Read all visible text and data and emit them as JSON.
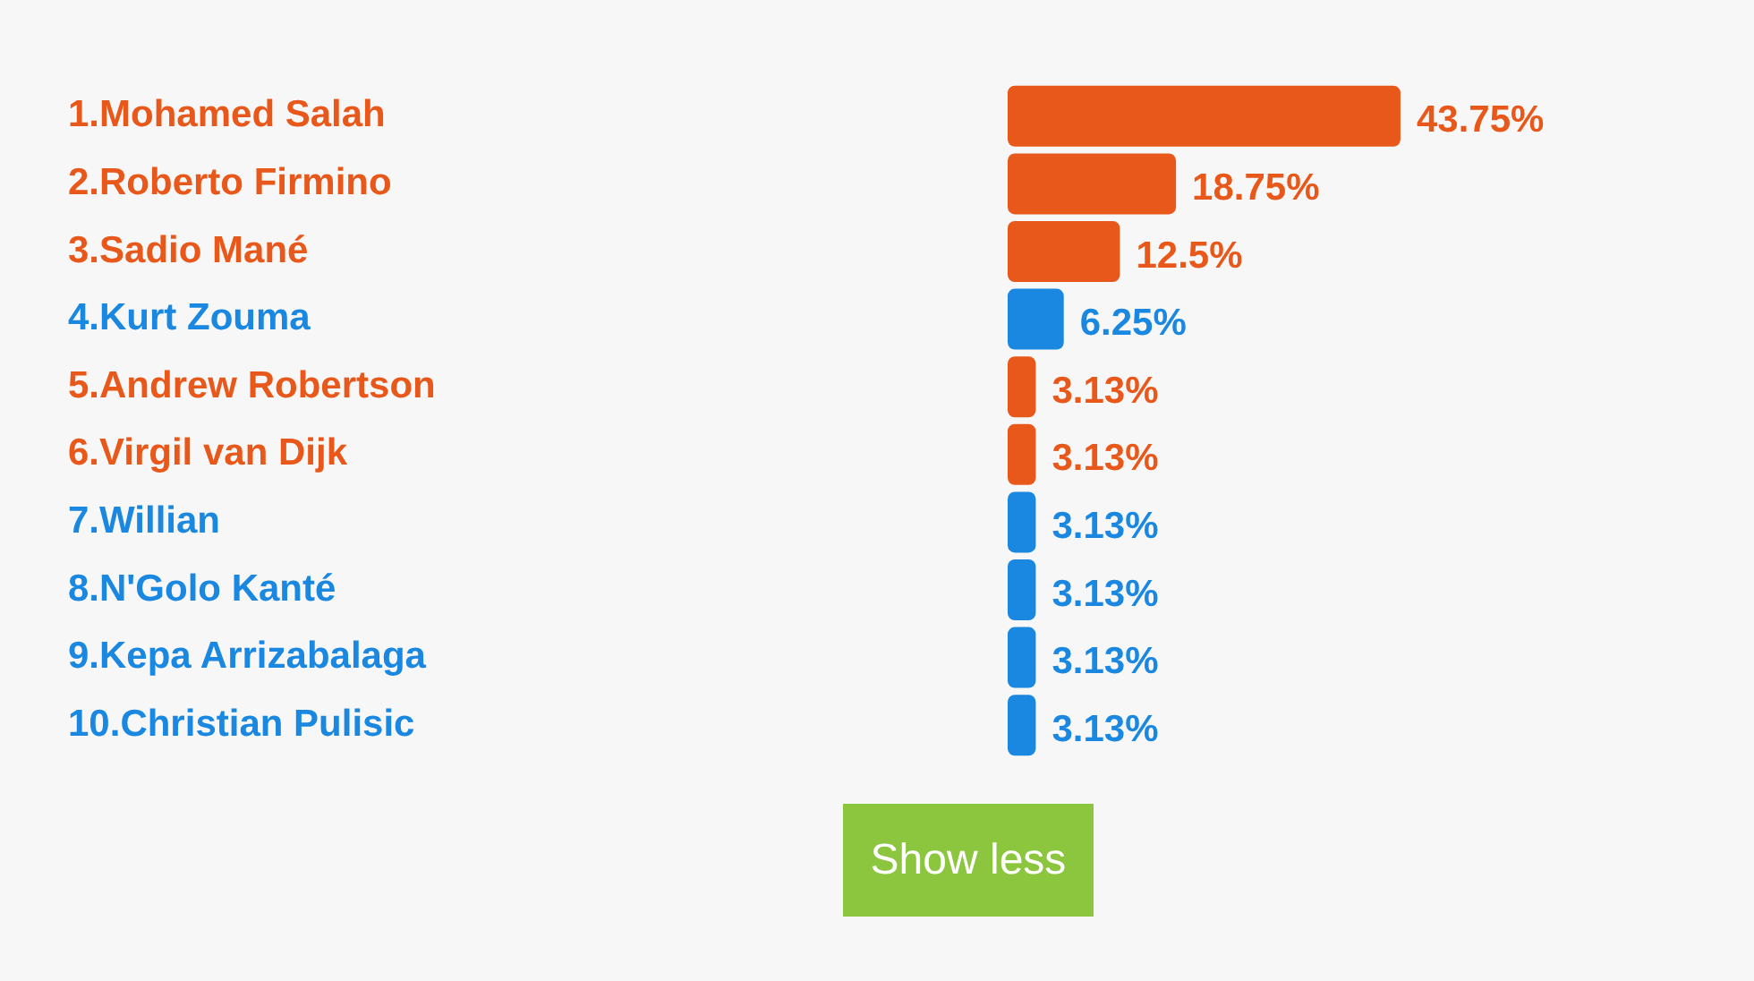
{
  "chart_data": {
    "type": "bar",
    "orientation": "horizontal",
    "categories": [
      "1.Mohamed Salah",
      "2.Roberto Firmino",
      "3.Sadio Mané",
      "4.Kurt Zouma",
      "5.Andrew Robertson",
      "6.Virgil van Dijk",
      "7.Willian",
      "8.N'Golo Kanté",
      "9.Kepa Arrizabalaga",
      "10.Christian Pulisic"
    ],
    "values": [
      43.75,
      18.75,
      12.5,
      6.25,
      3.13,
      3.13,
      3.13,
      3.13,
      3.13,
      3.13
    ],
    "colors": [
      "#e8581a",
      "#e8581a",
      "#e8581a",
      "#1a87e0",
      "#e8581a",
      "#e8581a",
      "#1a87e0",
      "#1a87e0",
      "#1a87e0",
      "#1a87e0"
    ],
    "value_labels": [
      "43.75%",
      "18.75%",
      "12.5%",
      "6.25%",
      "3.13%",
      "3.13%",
      "3.13%",
      "3.13%",
      "3.13%",
      "3.13%"
    ],
    "annotations": [
      "Show less"
    ]
  }
}
